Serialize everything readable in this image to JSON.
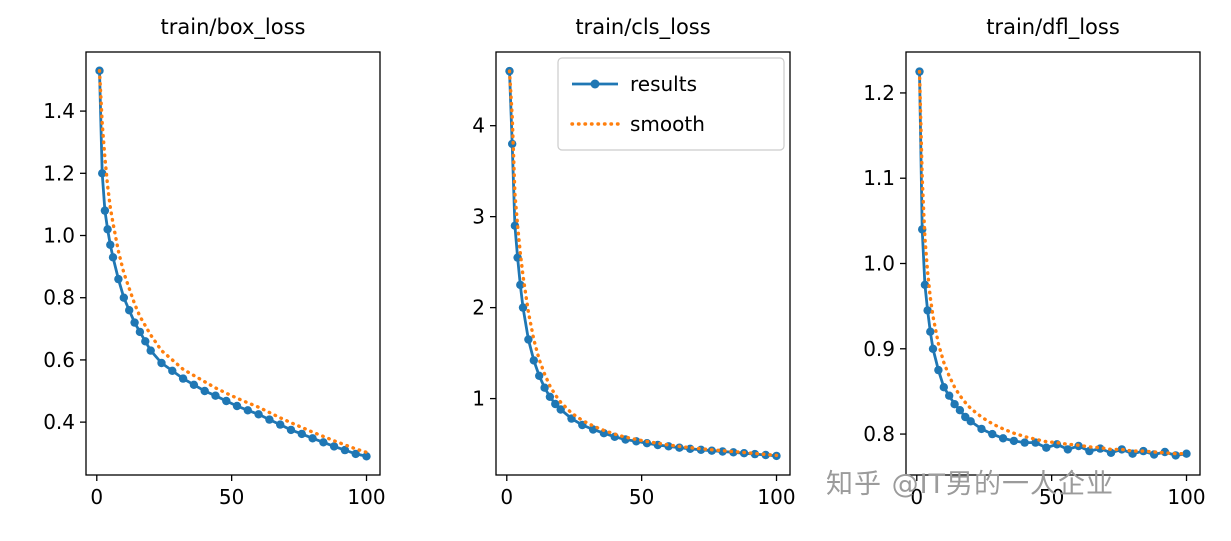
{
  "watermark": {
    "text": "知乎 @IT男的一人企业",
    "color": "#9b9b9b"
  },
  "colors": {
    "results": "#1f77b4",
    "smooth": "#ff7f0e",
    "axis": "#000000",
    "background": "#ffffff"
  },
  "chart_data": [
    {
      "type": "line",
      "title": "train/box_loss",
      "xlabel": "",
      "ylabel": "",
      "x": [
        1,
        2,
        3,
        4,
        5,
        6,
        8,
        10,
        12,
        14,
        16,
        18,
        20,
        24,
        28,
        32,
        36,
        40,
        44,
        48,
        52,
        56,
        60,
        64,
        68,
        72,
        76,
        80,
        84,
        88,
        92,
        96,
        100
      ],
      "series": [
        {
          "name": "results",
          "color": "#1f77b4",
          "style": "solid_marker",
          "values": [
            1.53,
            1.2,
            1.08,
            1.02,
            0.97,
            0.93,
            0.86,
            0.8,
            0.76,
            0.72,
            0.69,
            0.66,
            0.63,
            0.59,
            0.565,
            0.54,
            0.52,
            0.5,
            0.485,
            0.468,
            0.452,
            0.438,
            0.425,
            0.408,
            0.392,
            0.375,
            0.362,
            0.348,
            0.335,
            0.322,
            0.31,
            0.298,
            0.29
          ]
        },
        {
          "name": "smooth",
          "color": "#ff7f0e",
          "style": "dotted",
          "values": [
            1.53,
            1.36,
            1.25,
            1.16,
            1.09,
            1.04,
            0.95,
            0.88,
            0.83,
            0.78,
            0.74,
            0.71,
            0.68,
            0.63,
            0.6,
            0.57,
            0.55,
            0.53,
            0.51,
            0.493,
            0.477,
            0.462,
            0.448,
            0.431,
            0.414,
            0.398,
            0.383,
            0.368,
            0.354,
            0.34,
            0.327,
            0.314,
            0.303
          ]
        }
      ],
      "xlim": [
        -4,
        105
      ],
      "ylim": [
        0.23,
        1.59
      ],
      "xticks": [
        0,
        50,
        100
      ],
      "xtick_labels": [
        "0",
        "50",
        "100"
      ],
      "yticks": [
        0.4,
        0.6,
        0.8,
        1.0,
        1.2,
        1.4
      ],
      "ytick_labels": [
        "0.4",
        "0.6",
        "0.8",
        "1.0",
        "1.2",
        "1.4"
      ],
      "grid": false,
      "legend": false
    },
    {
      "type": "line",
      "title": "train/cls_loss",
      "xlabel": "",
      "ylabel": "",
      "x": [
        1,
        2,
        3,
        4,
        5,
        6,
        8,
        10,
        12,
        14,
        16,
        18,
        20,
        24,
        28,
        32,
        36,
        40,
        44,
        48,
        52,
        56,
        60,
        64,
        68,
        72,
        76,
        80,
        84,
        88,
        92,
        96,
        100
      ],
      "series": [
        {
          "name": "results",
          "color": "#1f77b4",
          "style": "solid_marker",
          "values": [
            4.6,
            3.8,
            2.9,
            2.55,
            2.25,
            2.0,
            1.65,
            1.42,
            1.25,
            1.12,
            1.02,
            0.94,
            0.88,
            0.78,
            0.71,
            0.66,
            0.62,
            0.58,
            0.55,
            0.53,
            0.51,
            0.49,
            0.475,
            0.46,
            0.448,
            0.437,
            0.427,
            0.418,
            0.41,
            0.4,
            0.39,
            0.38,
            0.37
          ]
        },
        {
          "name": "smooth",
          "color": "#ff7f0e",
          "style": "dotted",
          "values": [
            4.6,
            4.1,
            3.25,
            2.9,
            2.6,
            2.35,
            1.95,
            1.65,
            1.43,
            1.27,
            1.14,
            1.04,
            0.96,
            0.84,
            0.76,
            0.7,
            0.65,
            0.61,
            0.575,
            0.55,
            0.528,
            0.508,
            0.49,
            0.474,
            0.46,
            0.448,
            0.437,
            0.427,
            0.417,
            0.407,
            0.396,
            0.386,
            0.376
          ]
        }
      ],
      "xlim": [
        -4,
        105
      ],
      "ylim": [
        0.16,
        4.81
      ],
      "xticks": [
        0,
        50,
        100
      ],
      "xtick_labels": [
        "0",
        "50",
        "100"
      ],
      "yticks": [
        1,
        2,
        3,
        4
      ],
      "ytick_labels": [
        "1",
        "2",
        "3",
        "4"
      ],
      "grid": false,
      "legend": true
    },
    {
      "type": "line",
      "title": "train/dfl_loss",
      "xlabel": "",
      "ylabel": "",
      "x": [
        1,
        2,
        3,
        4,
        5,
        6,
        8,
        10,
        12,
        14,
        16,
        18,
        20,
        24,
        28,
        32,
        36,
        40,
        44,
        48,
        52,
        56,
        60,
        64,
        68,
        72,
        76,
        80,
        84,
        88,
        92,
        96,
        100
      ],
      "series": [
        {
          "name": "results",
          "color": "#1f77b4",
          "style": "solid_marker",
          "values": [
            1.225,
            1.04,
            0.975,
            0.945,
            0.92,
            0.9,
            0.875,
            0.855,
            0.845,
            0.835,
            0.828,
            0.82,
            0.815,
            0.806,
            0.8,
            0.795,
            0.792,
            0.79,
            0.79,
            0.784,
            0.788,
            0.782,
            0.786,
            0.78,
            0.783,
            0.778,
            0.782,
            0.777,
            0.78,
            0.776,
            0.779,
            0.775,
            0.777
          ]
        },
        {
          "name": "smooth",
          "color": "#ff7f0e",
          "style": "dotted",
          "values": [
            1.225,
            1.1,
            1.03,
            0.99,
            0.96,
            0.938,
            0.906,
            0.884,
            0.868,
            0.855,
            0.845,
            0.837,
            0.83,
            0.82,
            0.812,
            0.806,
            0.801,
            0.797,
            0.794,
            0.791,
            0.79,
            0.788,
            0.787,
            0.785,
            0.784,
            0.782,
            0.782,
            0.78,
            0.78,
            0.779,
            0.778,
            0.777,
            0.777
          ]
        }
      ],
      "xlim": [
        -4,
        105
      ],
      "ylim": [
        0.752,
        1.248
      ],
      "xticks": [
        0,
        50,
        100
      ],
      "xtick_labels": [
        "0",
        "50",
        "100"
      ],
      "yticks": [
        0.8,
        0.9,
        1.0,
        1.1,
        1.2
      ],
      "ytick_labels": [
        "0.8",
        "0.9",
        "1.0",
        "1.1",
        "1.2"
      ],
      "grid": false,
      "legend": false
    }
  ]
}
